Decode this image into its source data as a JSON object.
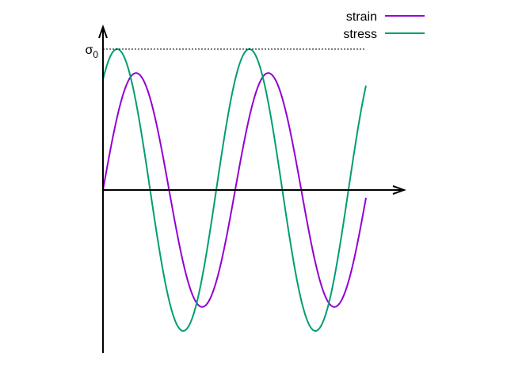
{
  "chart_data": {
    "type": "line",
    "title": "",
    "xlabel": "",
    "ylabel": "",
    "xlim": [
      0,
      12.5
    ],
    "ylim": [
      -1.15,
      1.0
    ],
    "y_reference_label": "σ",
    "y_reference_subscript": "0",
    "y_reference_value": 1.0,
    "legend_position": "top-right",
    "series": [
      {
        "name": "strain",
        "color": "#9400d3",
        "amplitude": 0.83,
        "period": 6.28318,
        "phase": 0.0,
        "x_start": 0.0,
        "x_end": 12.5
      },
      {
        "name": "stress",
        "color": "#009e73",
        "amplitude": 1.0,
        "period": 6.28318,
        "phase": 0.9,
        "x_start": 0.0,
        "x_end": 12.5
      }
    ]
  }
}
